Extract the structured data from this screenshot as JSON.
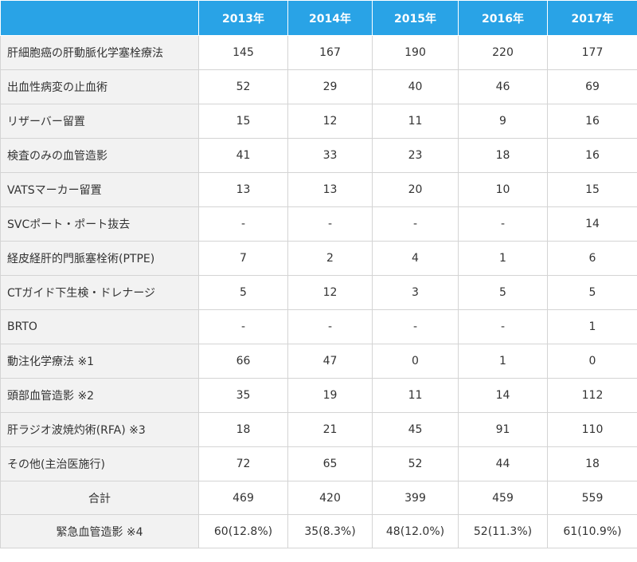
{
  "table": {
    "columns": [
      "2013年",
      "2014年",
      "2015年",
      "2016年",
      "2017年"
    ],
    "rows": [
      {
        "label": "肝細胞癌の肝動脈化学塞栓療法",
        "values": [
          "145",
          "167",
          "190",
          "220",
          "177"
        ]
      },
      {
        "label": "出血性病変の止血術",
        "values": [
          "52",
          "29",
          "40",
          "46",
          "69"
        ]
      },
      {
        "label": "リザーバー留置",
        "values": [
          "15",
          "12",
          "11",
          "9",
          "16"
        ]
      },
      {
        "label": "検査のみの血管造影",
        "values": [
          "41",
          "33",
          "23",
          "18",
          "16"
        ]
      },
      {
        "label": "VATSマーカー留置",
        "values": [
          "13",
          "13",
          "20",
          "10",
          "15"
        ]
      },
      {
        "label": "SVCポート・ポート抜去",
        "values": [
          "-",
          "-",
          "-",
          "-",
          "14"
        ]
      },
      {
        "label": "経皮経肝的門脈塞栓術(PTPE)",
        "values": [
          "7",
          "2",
          "4",
          "1",
          "6"
        ]
      },
      {
        "label": "CTガイド下生検・ドレナージ",
        "values": [
          "5",
          "12",
          "3",
          "5",
          "5"
        ]
      },
      {
        "label": "BRTO",
        "values": [
          "-",
          "-",
          "-",
          "-",
          "1"
        ]
      },
      {
        "label": "動注化学療法 ※1",
        "values": [
          "66",
          "47",
          "0",
          "1",
          "0"
        ]
      },
      {
        "label": "頭部血管造影 ※2",
        "values": [
          "35",
          "19",
          "11",
          "14",
          "112"
        ]
      },
      {
        "label": "肝ラジオ波焼灼術(RFA) ※3",
        "values": [
          "18",
          "21",
          "45",
          "91",
          "110"
        ]
      },
      {
        "label": "その他(主治医施行)",
        "values": [
          "72",
          "65",
          "52",
          "44",
          "18"
        ]
      },
      {
        "label": "合計",
        "values": [
          "469",
          "420",
          "399",
          "459",
          "559"
        ]
      },
      {
        "label": "緊急血管造影 ※4",
        "values": [
          "60(12.8%)",
          "35(8.3%)",
          "48(12.0%)",
          "52(11.3%)",
          "61(10.9%)"
        ]
      }
    ]
  }
}
